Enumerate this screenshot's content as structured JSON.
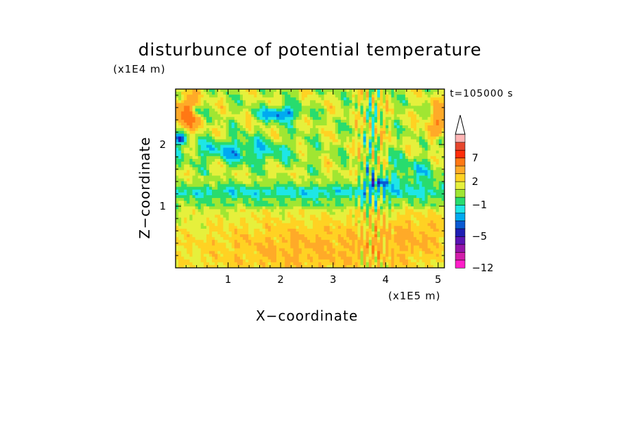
{
  "chart_data": {
    "type": "heatmap",
    "title": "disturbunce of potential temperature",
    "time_label": "t=105000 s",
    "xlabel": "X−coordinate",
    "ylabel": "Z−coordinate",
    "x_unit": "(x1E5 m)",
    "y_unit": "(x1E4 m)",
    "xlim": [
      0,
      5.12
    ],
    "ylim": [
      0,
      2.9
    ],
    "x_ticks": [
      {
        "value": 1,
        "label": "1"
      },
      {
        "value": 2,
        "label": "2"
      },
      {
        "value": 3,
        "label": "3"
      },
      {
        "value": 4,
        "label": "4"
      },
      {
        "value": 5,
        "label": "5"
      }
    ],
    "y_ticks": [
      {
        "value": 1,
        "label": "1"
      },
      {
        "value": 2,
        "label": "2"
      }
    ],
    "colorbar": {
      "levels": [
        -12,
        -10,
        -8,
        -6,
        -5,
        -4,
        -3,
        -2,
        -1,
        0,
        1,
        2,
        3,
        5,
        7,
        9,
        11
      ],
      "colors": [
        "#ff1ec8",
        "#d21eaa",
        "#9614aa",
        "#5a14b4",
        "#1e1eb4",
        "#0a5ad2",
        "#00aaf0",
        "#1ee6e6",
        "#28dc6e",
        "#a0e632",
        "#e6f03c",
        "#ffd223",
        "#ffaa28",
        "#ff7814",
        "#ff2d0a",
        "#e6462d",
        "#ffb4b4"
      ],
      "tick_labels": [
        {
          "value": -12,
          "label": "−12"
        },
        {
          "value": -5,
          "label": "−5"
        },
        {
          "value": -1,
          "label": "−1"
        },
        {
          "value": 2,
          "label": "2"
        },
        {
          "value": 7,
          "label": "7"
        }
      ],
      "extend_max": true
    }
  }
}
